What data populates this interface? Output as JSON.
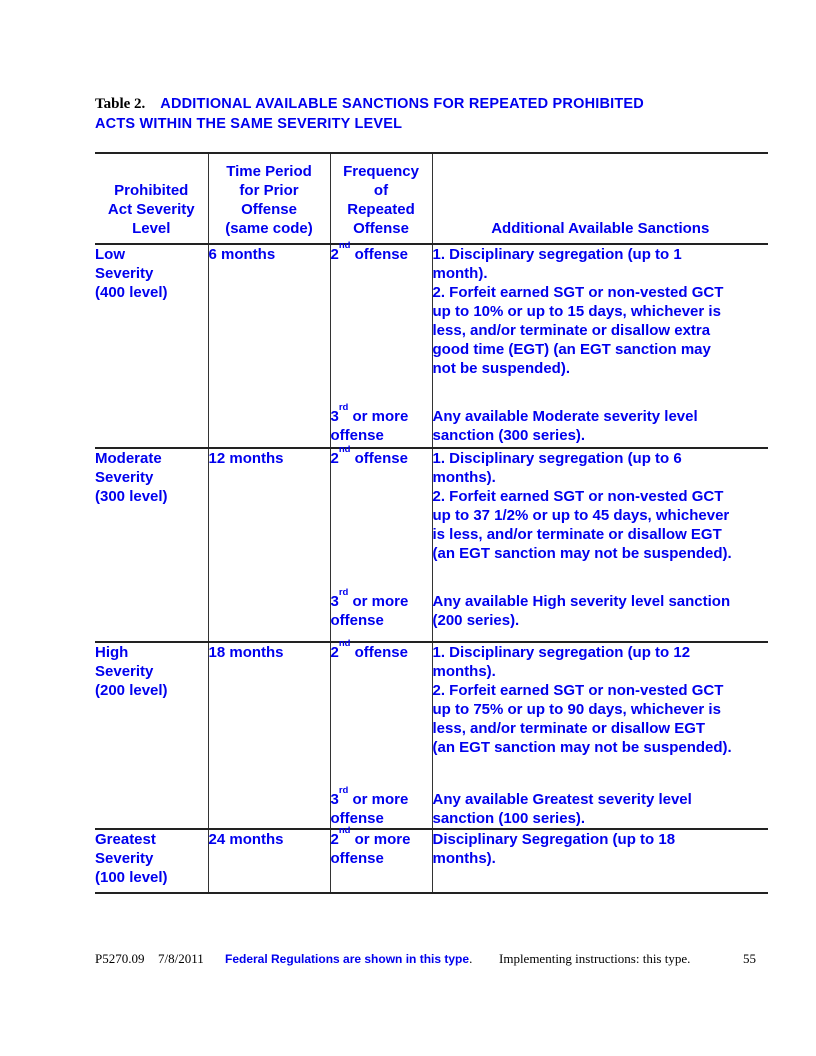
{
  "colors": {
    "text_blue": "#0000ee",
    "text_black": "#000000",
    "rule_black": "#222222"
  },
  "page": {
    "title_prefix": "Table 2.",
    "title_text": "ADDITIONAL AVAILABLE SANCTIONS FOR REPEATED PROHIBITED\nACTS WITHIN THE SAME SEVERITY LEVEL"
  },
  "table": {
    "headers": {
      "severity": "Prohibited\nAct Severity\nLevel",
      "time_period": "Time Period\nfor Prior\nOffense\n(same code)",
      "frequency": "Frequency\nof\nRepeated\nOffense",
      "sanctions": "Additional Available Sanctions"
    },
    "groups": [
      {
        "severity": "Low\nSeverity\n(400 level)",
        "time_period": "6 months",
        "offense2": {
          "base": "2",
          "sup": "nd",
          "after": " offense"
        },
        "sanctions2": "1. Disciplinary segregation (up to 1\nmonth).\n2. Forfeit earned SGT or non-vested GCT\nup to 10% or up to 15 days, whichever is\nless, and/or terminate or disallow extra\ngood time (EGT) (an EGT sanction may\nnot be suspended).",
        "offense3": {
          "base": "3",
          "sup": "rd",
          "after": " or more\noffense"
        },
        "sanctions3": "Any available Moderate severity level\nsanction (300 series)."
      },
      {
        "severity": "Moderate\nSeverity\n(300 level)",
        "time_period": "12 months",
        "offense2": {
          "base": "2",
          "sup": "nd",
          "after": " offense"
        },
        "sanctions2": "1. Disciplinary segregation (up to 6\nmonths).\n2. Forfeit earned SGT or non-vested GCT\nup to 37 1/2% or up to 45 days, whichever\nis less, and/or terminate or disallow EGT\n(an EGT sanction may not be suspended).",
        "offense3": {
          "base": "3",
          "sup": "rd",
          "after": " or more\noffense"
        },
        "sanctions3": "Any available High severity level sanction\n(200 series)."
      },
      {
        "severity": "High\nSeverity\n(200 level)",
        "time_period": "18 months",
        "offense2": {
          "base": "2",
          "sup": "nd",
          "after": " offense"
        },
        "sanctions2": "1. Disciplinary segregation (up to 12\nmonths).\n2. Forfeit earned SGT or non-vested GCT\nup to 75% or up to 90 days, whichever is\nless, and/or terminate or disallow EGT\n(an EGT sanction may not be suspended).",
        "offense3": {
          "base": "3",
          "sup": "rd",
          "after": " or more\noffense"
        },
        "sanctions3": "Any available Greatest severity level\nsanction (100 series)."
      },
      {
        "severity": "Greatest\nSeverity\n(100 level)",
        "time_period": "24 months",
        "offense2": {
          "base": "2",
          "sup": "nd",
          "after": " or more\noffense"
        },
        "sanctions2": "Disciplinary Segregation (up to 18\nmonths)."
      }
    ]
  },
  "footer": {
    "document_number": "P5270.09",
    "date": "7/8/2011",
    "regulations_note": "Federal Regulations are shown in this type",
    "regulations_note_period": ".",
    "instructions_note": "Implementing instructions: this type.",
    "page_number": "55"
  }
}
